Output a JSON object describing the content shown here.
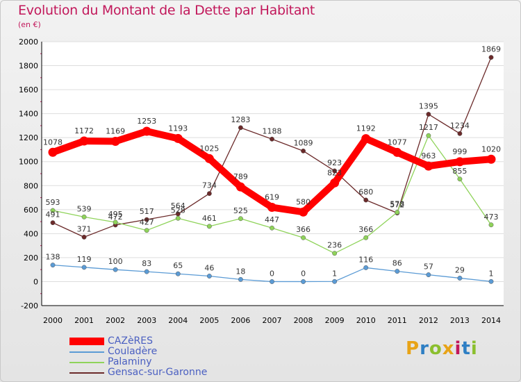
{
  "chart_title": "Evolution du Montant de la Dette par Habitant",
  "chart_subtitle": "(en €)",
  "brand": "Proxiti",
  "colors": {
    "title": "#c2185b",
    "legend_text": "#4a5fc1",
    "cazeres": "#ff0000",
    "couladere": "#5b9bd5",
    "palaminy": "#8fd35a",
    "gensac": "#6b2a2a"
  },
  "chart_data": {
    "type": "line",
    "title": "Evolution du Montant de la Dette par Habitant",
    "subtitle": "(en €)",
    "x": [
      2000,
      2001,
      2002,
      2003,
      2004,
      2005,
      2006,
      2007,
      2008,
      2009,
      2010,
      2011,
      2012,
      2013,
      2014
    ],
    "x_tick_labels": [
      "2000",
      "2001",
      "2002",
      "2003",
      "2004",
      "2005",
      "2006",
      "2007",
      "2008",
      "2009",
      "2010",
      "2011",
      "2012",
      "2013",
      "2014"
    ],
    "y_ticks": [
      -200,
      0,
      200,
      400,
      600,
      800,
      1000,
      1200,
      1400,
      1600,
      1800,
      2000
    ],
    "y_tick_labels": [
      "-200",
      "0",
      "200",
      "400",
      "600",
      "800",
      "1000",
      "1200",
      "1400",
      "1600",
      "1800",
      "2000"
    ],
    "ylim": [
      -200,
      2000
    ],
    "grid": "horizontal",
    "legend_position": "bottom-left",
    "series": [
      {
        "name": "CAZèRES",
        "color": "#ff0000",
        "values": [
          1078,
          1172,
          1169,
          1253,
          1193,
          1025,
          789,
          619,
          580,
          823,
          1192,
          1077,
          963,
          999,
          1020
        ]
      },
      {
        "name": "Couladère",
        "color": "#5b9bd5",
        "values": [
          138,
          119,
          100,
          83,
          65,
          46,
          18,
          0,
          0,
          1,
          116,
          86,
          57,
          29,
          1
        ]
      },
      {
        "name": "Palaminy",
        "color": "#8fd35a",
        "values": [
          593,
          539,
          495,
          427,
          528,
          461,
          525,
          447,
          366,
          236,
          366,
          578,
          1217,
          855,
          473
        ]
      },
      {
        "name": "Gensac-sur-Garonne",
        "color": "#6b2a2a",
        "values": [
          491,
          371,
          472,
          517,
          564,
          734,
          1283,
          1188,
          1089,
          923,
          680,
          572,
          1395,
          1234,
          1869
        ]
      }
    ]
  }
}
